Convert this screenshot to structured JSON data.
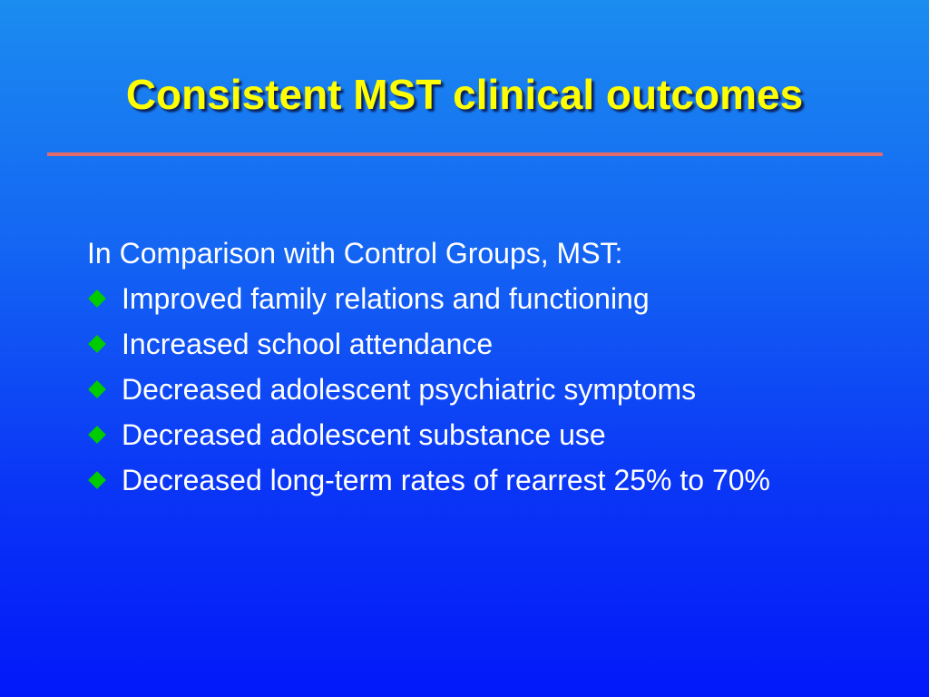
{
  "slide": {
    "title": "Consistent MST clinical outcomes",
    "lead": "In Comparison with Control Groups, MST:",
    "bullets": [
      "Improved family relations and functioning",
      "Increased school attendance",
      "Decreased adolescent psychiatric symptoms",
      "Decreased adolescent substance use",
      "Decreased long-term rates of rearrest 25% to 70%"
    ],
    "bullet_icon": "green-diamond-bullet-icon"
  }
}
